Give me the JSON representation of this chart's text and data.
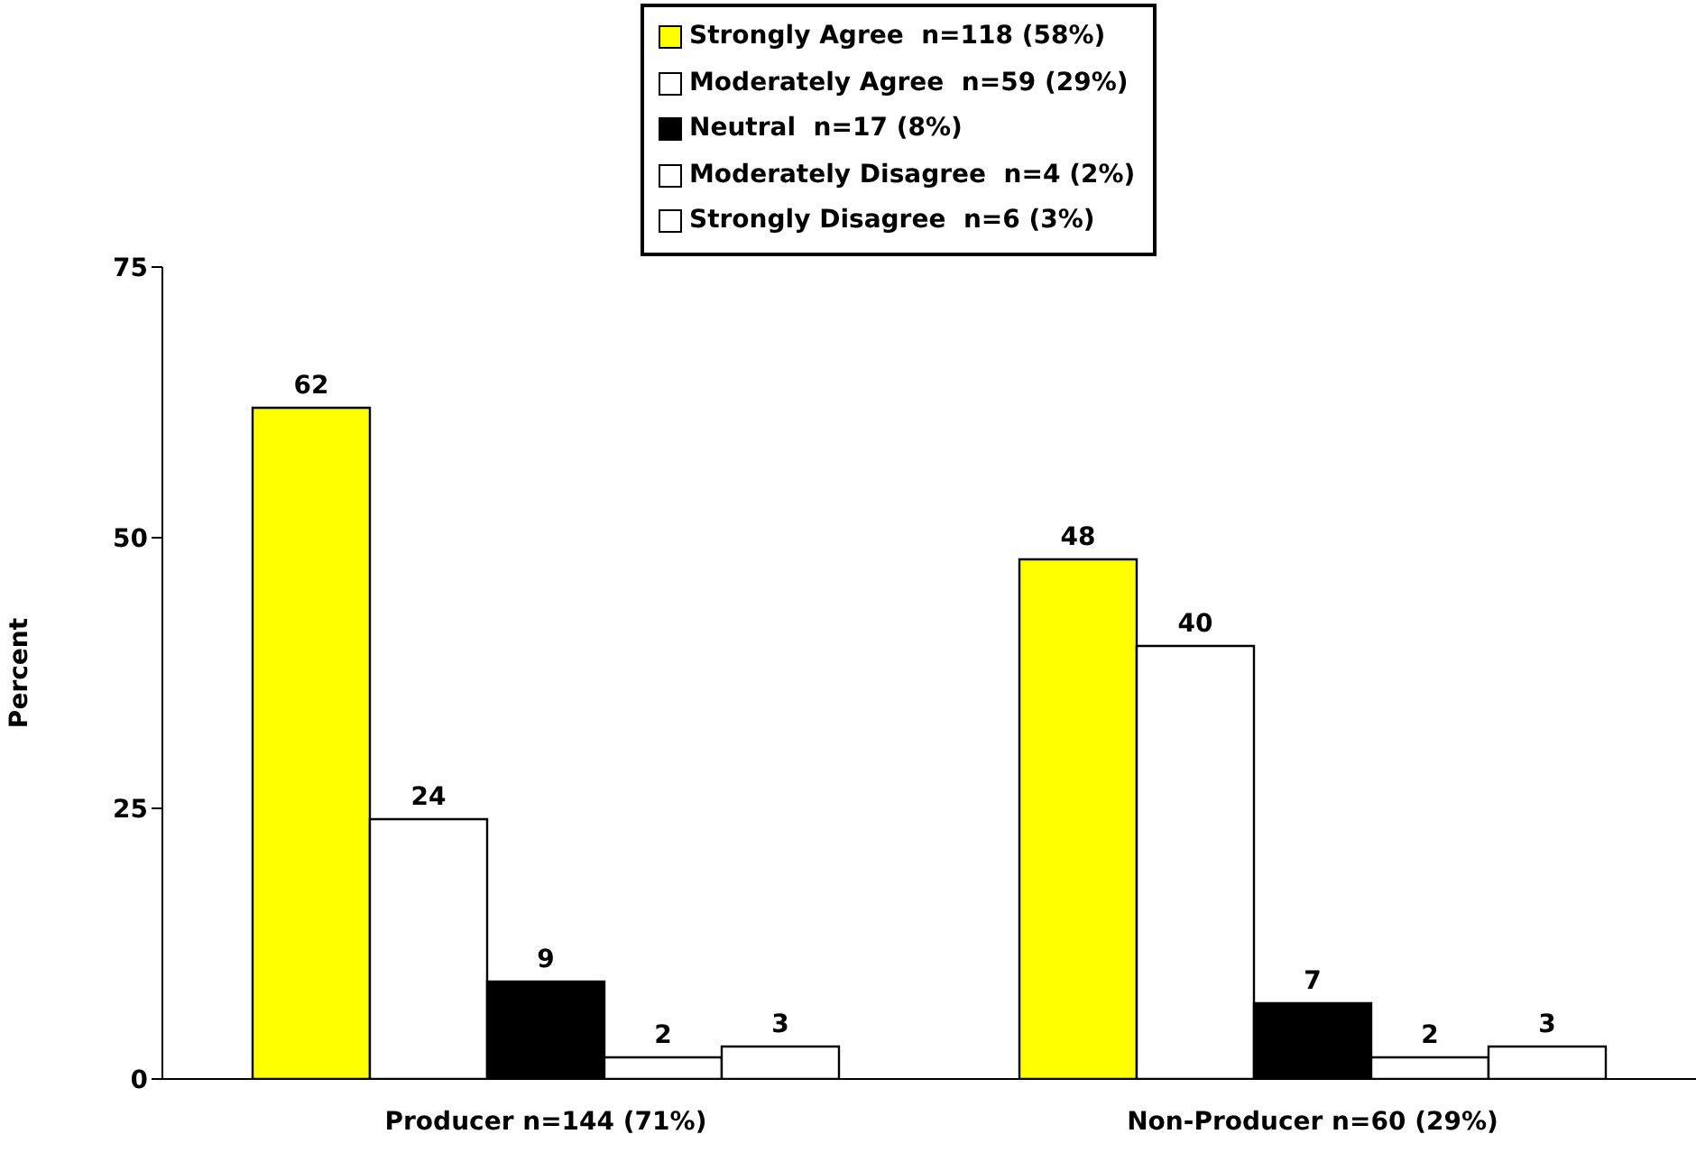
{
  "chart_data": {
    "type": "bar",
    "ylabel": "Percent",
    "categories": [
      "Producer n=144 (71%)",
      "Non-Producer n=60 (29%)"
    ],
    "series": [
      {
        "name": "Strongly Agree  n=118 (58%)",
        "color": "#ffff00",
        "values": [
          62,
          48
        ]
      },
      {
        "name": "Moderately Agree  n=59 (29%)",
        "color": "#ffffff",
        "values": [
          24,
          40
        ]
      },
      {
        "name": "Neutral  n=17 (8%)",
        "color": "#000000",
        "values": [
          9,
          7
        ]
      },
      {
        "name": "Moderately Disagree  n=4 (2%)",
        "color": "#ffffff",
        "values": [
          2,
          2
        ]
      },
      {
        "name": "Strongly Disagree  n=6 (3%)",
        "color": "#ffffff",
        "values": [
          3,
          3
        ]
      }
    ],
    "ylim": [
      0,
      75
    ],
    "yticks": [
      0,
      25,
      50,
      75
    ],
    "data_labels": true,
    "legend": "top",
    "grid": false
  }
}
